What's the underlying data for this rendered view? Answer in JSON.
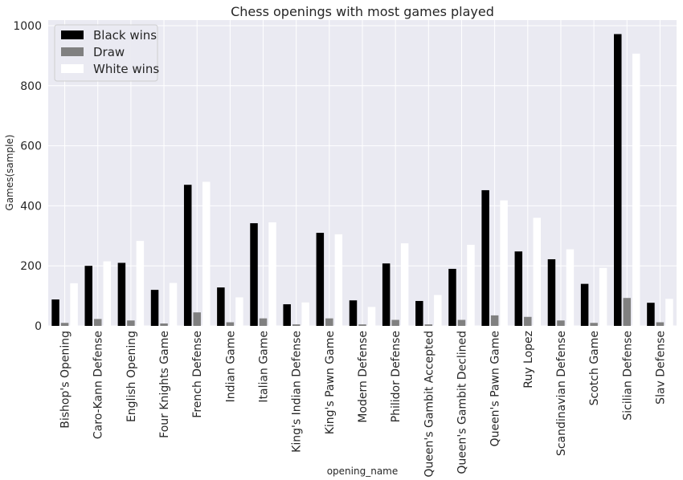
{
  "chart_data": {
    "type": "bar",
    "title": "Chess openings with most games played",
    "xlabel": "opening_name",
    "ylabel": "Games(sample)",
    "ylim": [
      0,
      1000
    ],
    "yticks": [
      0,
      200,
      400,
      600,
      800,
      1000
    ],
    "grid": true,
    "legend_position": "top-left",
    "categories": [
      "Bishop's Opening",
      "Caro-Kann Defense",
      "English Opening",
      "Four Knights Game",
      "French Defense",
      "Indian Game",
      "Italian Game",
      "King's Indian Defense",
      "King's Pawn Game",
      "Modern Defense",
      "Philidor Defense",
      "Queen's Gambit Accepted",
      "Queen's Gambit Declined",
      "Queen's Pawn Game",
      "Ruy Lopez",
      "Scandinavian Defense",
      "Scotch Game",
      "Sicilian Defense",
      "Slav Defense"
    ],
    "series": [
      {
        "name": "Black wins",
        "color": "#000000",
        "values": [
          88,
          200,
          210,
          120,
          470,
          128,
          342,
          72,
          310,
          85,
          208,
          83,
          190,
          452,
          248,
          222,
          140,
          972,
          77
        ]
      },
      {
        "name": "Draw",
        "color": "#808080",
        "values": [
          10,
          23,
          18,
          8,
          45,
          12,
          25,
          5,
          25,
          5,
          20,
          5,
          20,
          35,
          30,
          18,
          10,
          93,
          12
        ]
      },
      {
        "name": "White wins",
        "color": "#ffffff",
        "values": [
          142,
          215,
          283,
          143,
          480,
          95,
          345,
          78,
          305,
          63,
          275,
          103,
          270,
          418,
          360,
          255,
          193,
          907,
          90
        ]
      }
    ],
    "colors": {
      "background": "#eaeaf2",
      "grid": "#ffffff",
      "text": "#262626"
    }
  }
}
